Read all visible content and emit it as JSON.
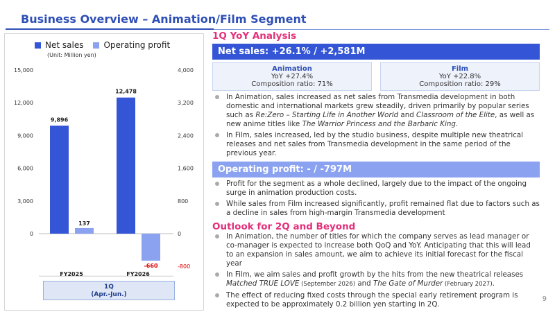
{
  "page": {
    "title": "Business Overview – Animation/Film Segment",
    "page_number": "9"
  },
  "legend": {
    "net_sales": "Net sales",
    "operating_profit": "Operating profit",
    "unit": "(Unit: Million yen)",
    "net_sales_color": "#3355d6",
    "profit_color": "#8aa2f0"
  },
  "period_box": {
    "line1": "1Q",
    "line2": "(Apr.-Jun.)"
  },
  "chart_data": {
    "type": "bar",
    "categories": [
      "FY2025",
      "FY2026"
    ],
    "series": [
      {
        "name": "Net sales",
        "values": [
          9896,
          12478
        ],
        "labels": [
          "9,896",
          "12,478"
        ],
        "axis": "left"
      },
      {
        "name": "Operating profit",
        "values": [
          137,
          -660
        ],
        "labels": [
          "137",
          "-660"
        ],
        "axis": "right"
      }
    ],
    "left_axis": {
      "ticks": [
        0,
        3000,
        6000,
        9000,
        12000,
        15000
      ],
      "tick_labels": [
        "0",
        "3,000",
        "6,000",
        "9,000",
        "12,000",
        "15,000"
      ],
      "ylim": [
        0,
        15000
      ]
    },
    "right_axis": {
      "ticks": [
        -800,
        0,
        800,
        1600,
        2400,
        3200,
        4000
      ],
      "tick_labels": [
        "-800",
        "0",
        "800",
        "1,600",
        "2,400",
        "3,200",
        "4,000"
      ],
      "ylim": [
        -800,
        4000
      ]
    },
    "grid": false
  },
  "analysis": {
    "heading": "1Q YoY Analysis",
    "net_sales_band": "Net sales: +26.1% / +2,581M",
    "animation": {
      "name": "Animation",
      "yoy": "YoY +27.4%",
      "ratio": "Composition ratio: 71%"
    },
    "film": {
      "name": "Film",
      "yoy": "YoY +22.8%",
      "ratio": "Composition ratio: 29%"
    },
    "sales_bullets": [
      {
        "t1": "In Animation, sales increased as net sales from Transmedia development in both domestic and international markets grew steadily, driven primarily by popular series such as ",
        "i1": "Re:Zero – Starting Life in Another World",
        "t2": " and ",
        "i2": "Classroom of the Elite",
        "t3": ", as well as new anime titles like ",
        "i3": "The Warrior Princess and the Barbaric King",
        "t4": "."
      },
      {
        "text": "In Film, sales increased, led by the studio business, despite multiple new theatrical releases and net sales from Transmedia development in the same period of the previous year."
      }
    ],
    "profit_band": "Operating profit: - / -797M",
    "profit_bullets": [
      "Profit for the segment as a whole declined, largely due to the impact of the ongoing surge in animation production costs.",
      "While sales from Film increased significantly, profit remained flat due to factors such as a decline in sales from high-margin Transmedia development"
    ]
  },
  "outlook": {
    "heading": "Outlook for 2Q and Beyond",
    "b1": "In Animation, the number of titles for which the company serves as lead manager or co-manager is expected to increase both QoQ and YoY. Anticipating that this will lead to an expansion in sales amount, we aim to achieve its initial forecast for the fiscal year",
    "b2": {
      "t1": "In Film, we aim sales and profit growth by the hits from the new theatrical releases ",
      "i1": "Matched TRUE LOVE",
      "s1": " (September 2026)",
      "t2": " and ",
      "i2": "The Gate of Murder",
      "s2": " (February 2027)",
      "t3": "."
    },
    "b3": "The effect of reducing fixed costs through the special early retirement program is expected to be approximately 0.2 billion yen starting in 2Q."
  }
}
